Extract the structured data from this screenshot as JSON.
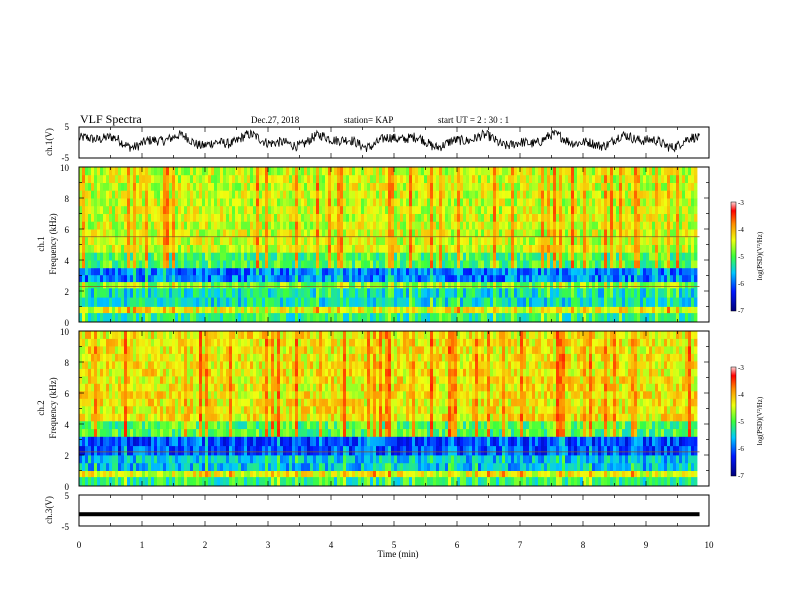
{
  "header": {
    "title": "VLF Spectra",
    "date": "Dec.27, 2018",
    "station": "station= KAP",
    "start": "start  UT =   2  : 30 : 1"
  },
  "chart_data": {
    "type": "heatmap",
    "xlabel": "Time  (min)",
    "x_ticks": [
      "0",
      "1",
      "2",
      "3",
      "4",
      "5",
      "6",
      "7",
      "8",
      "9",
      "10"
    ],
    "xlim": [
      0,
      10
    ],
    "data_end_min": 9.85,
    "panels": [
      {
        "id": "ch1-waveform",
        "type": "line",
        "ylabel": "ch.1(V)",
        "ylim": [
          -5,
          5
        ],
        "y_ticks": [
          "5",
          "-5"
        ],
        "approx_level_v": 0.5,
        "approx_noise_v": 2.0
      },
      {
        "id": "ch1-spectrogram",
        "type": "heatmap",
        "ylabel_line1": "ch.1",
        "ylabel_line2": "Frequency  (kHz)",
        "ylim_khz": [
          0,
          10
        ],
        "y_ticks": [
          "0",
          "2",
          "4",
          "6",
          "8",
          "10"
        ],
        "colorbar": {
          "label": "log(PSD)(V²/Hz)",
          "ticks": [
            "-3",
            "-4",
            "-5",
            "-6",
            "-7"
          ],
          "range": [
            -7,
            -3
          ]
        },
        "bands_khz": [
          {
            "from": 0.0,
            "to": 0.6,
            "level": -5.2
          },
          {
            "from": 0.6,
            "to": 1.0,
            "level": -4.4
          },
          {
            "from": 1.0,
            "to": 2.2,
            "level": -5.4
          },
          {
            "from": 2.2,
            "to": 2.6,
            "level": -4.8
          },
          {
            "from": 2.6,
            "to": 3.5,
            "level": -5.9
          },
          {
            "from": 3.5,
            "to": 4.5,
            "level": -5.0
          },
          {
            "from": 4.5,
            "to": 10.0,
            "level": -4.5
          }
        ],
        "burst_level": -3.8,
        "lines_khz": [
          5.5,
          2.3
        ]
      },
      {
        "id": "ch2-spectrogram",
        "type": "heatmap",
        "ylabel_line1": "ch.2",
        "ylabel_line2": "Frequency  (kHz)",
        "ylim_khz": [
          0,
          10
        ],
        "y_ticks": [
          "0",
          "2",
          "4",
          "6",
          "8",
          "10"
        ],
        "colorbar": {
          "label": "log(PSD)(V²/Hz)",
          "ticks": [
            "-3",
            "-4",
            "-5",
            "-6",
            "-7"
          ],
          "range": [
            -7,
            -3
          ]
        },
        "bands_khz": [
          {
            "from": 0.0,
            "to": 0.6,
            "level": -5.2
          },
          {
            "from": 0.6,
            "to": 1.0,
            "level": -4.4
          },
          {
            "from": 1.0,
            "to": 2.0,
            "level": -5.6
          },
          {
            "from": 2.0,
            "to": 3.2,
            "level": -6.1
          },
          {
            "from": 3.2,
            "to": 4.2,
            "level": -5.0
          },
          {
            "from": 4.2,
            "to": 10.0,
            "level": -4.3
          }
        ],
        "burst_level": -3.7,
        "lines_khz": [
          2.2
        ]
      },
      {
        "id": "ch3-waveform",
        "type": "line",
        "ylabel": "ch.3(V)",
        "ylim": [
          -5,
          5
        ],
        "y_ticks": [
          "5",
          "-5"
        ],
        "approx_level_v": -1.2
      }
    ]
  }
}
